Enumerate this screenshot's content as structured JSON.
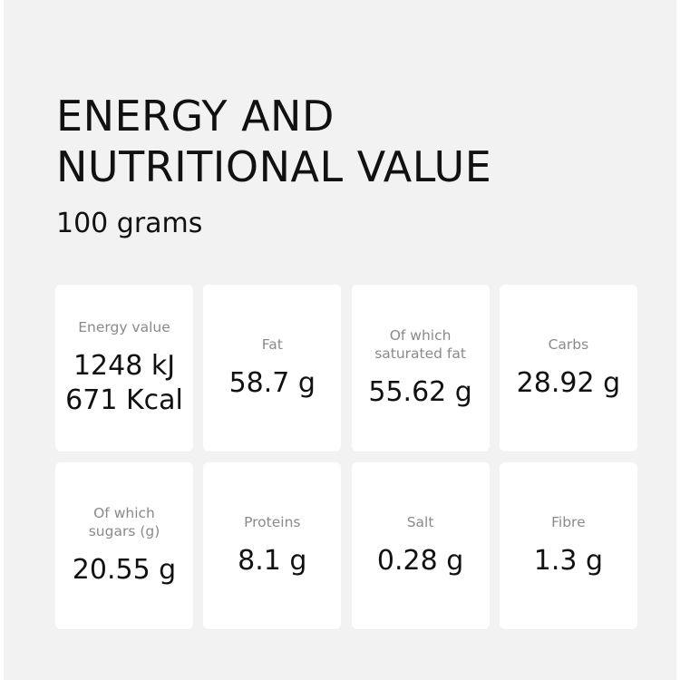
{
  "header": {
    "title": "ENERGY AND NUTRITIONAL VALUE",
    "subtitle": "100 grams"
  },
  "cards": [
    {
      "label": "Energy value",
      "value": "1248 kJ\n671 Kcal"
    },
    {
      "label": "Fat",
      "value": "58.7 g"
    },
    {
      "label": "Of which\nsaturated fat",
      "value": "55.62 g"
    },
    {
      "label": "Carbs",
      "value": "28.92 g"
    },
    {
      "label": "Of which\nsugars (g)",
      "value": "20.55 g"
    },
    {
      "label": "Proteins",
      "value": "8.1 g"
    },
    {
      "label": "Salt",
      "value": "0.28 g"
    },
    {
      "label": "Fibre",
      "value": "1.3 g"
    }
  ]
}
